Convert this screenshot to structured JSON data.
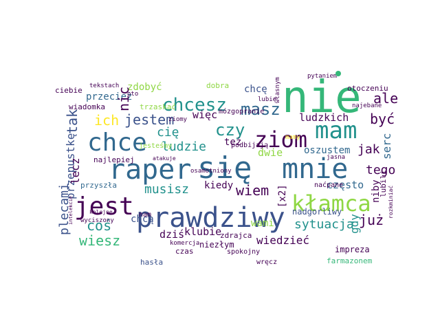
{
  "palette": {
    "background": "#ffffff",
    "purple": "#440154",
    "indigo": "#3b528b",
    "blue": "#31688e",
    "teal": "#21918c",
    "green": "#35b779",
    "lime": "#8fd744",
    "yellow": "#fde725"
  },
  "words": [
    "nie",
    "się",
    "mnie",
    "raper",
    "prawdziwy",
    "chce",
    "jest",
    "mam",
    "ziom",
    "kłamca",
    "chcesz",
    "masz",
    "czy",
    "jestem",
    "ich",
    "być",
    "ale",
    "zdobyć",
    "nic",
    "chcę",
    "przecież",
    "ludzkich",
    "tak",
    "cię",
    "więc",
    "ludzie",
    "też",
    "jak",
    "tego",
    "przepustkę",
    "dwie",
    "musisz",
    "wiem",
    "kiedy",
    "często",
    "coś",
    "wiesz",
    "dziś",
    "klubie",
    "sytuacja",
    "już",
    "wiedzieć",
    "plecami",
    "lecz",
    "chcą",
    "wami",
    "gdy",
    "oszustem",
    "serc",
    "niby",
    "nadgorliwy",
    "lubili",
    "[x2]",
    "impreza",
    "farmazonem",
    "zdrajca",
    "niezłym",
    "spokojny",
    "czas",
    "hasła",
    "wręcz",
    "przyszła",
    "najlepiej",
    "nam",
    "komercja",
    "ciebie",
    "tekstach",
    "wiadomka",
    "trzaskać",
    "dobra",
    "mózgopranie",
    "lubię",
    "ziomy",
    "jesteśmy",
    "podbijają",
    "otoczeniu",
    "pytaniem",
    "najebane",
    "własnym",
    "mamy",
    "atakuje",
    "osamotniony",
    "jasna",
    "oto",
    "kolejne",
    "wyciszony",
    "rozkminiać",
    "naćpane",
    "intelekcie"
  ]
}
